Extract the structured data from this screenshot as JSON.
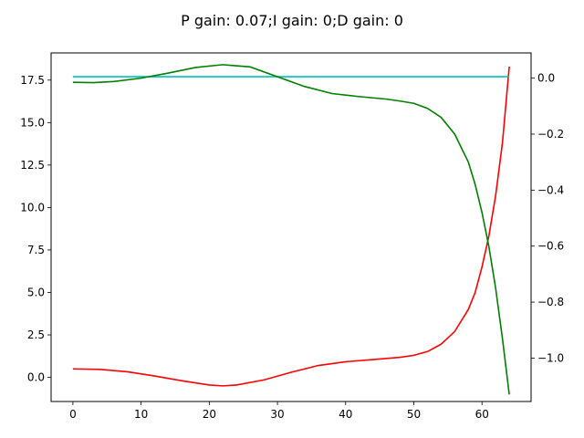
{
  "chart_data": {
    "type": "line",
    "title": "P gain: 0.07;I gain: 0;D gain: 0",
    "xlabel": "",
    "ylabel": "",
    "ylabel_right": "",
    "grid": false,
    "xlim": [
      -3.2,
      67.2
    ],
    "ylim_left": [
      -1.42,
      19.1
    ],
    "ylim_right": [
      -1.155,
      0.09
    ],
    "x_ticks": [
      0,
      10,
      20,
      30,
      40,
      50,
      60
    ],
    "y_ticks_left": [
      0.0,
      2.5,
      5.0,
      7.5,
      10.0,
      12.5,
      15.0,
      17.5
    ],
    "y_ticks_right": [
      0.0,
      -0.2,
      -0.4,
      -0.6,
      -0.8,
      -1.0
    ],
    "series": [
      {
        "axis": "left",
        "color": "#ff0000",
        "x": [
          0,
          4,
          8,
          12,
          16,
          20,
          22,
          24,
          28,
          32,
          36,
          40,
          44,
          48,
          50,
          52,
          54,
          56,
          58,
          59,
          60,
          61,
          62,
          63,
          64
        ],
        "y": [
          0.5,
          0.47,
          0.33,
          0.08,
          -0.2,
          -0.45,
          -0.5,
          -0.45,
          -0.15,
          0.3,
          0.7,
          0.92,
          1.05,
          1.18,
          1.3,
          1.52,
          1.95,
          2.7,
          4.0,
          5.0,
          6.5,
          8.3,
          10.7,
          13.8,
          18.3
        ]
      },
      {
        "axis": "left",
        "color": "#00bfbf",
        "x": [
          0,
          64
        ],
        "y": [
          17.7,
          17.7
        ]
      },
      {
        "axis": "right",
        "color": "#008000",
        "x": [
          0,
          3,
          6,
          10,
          14,
          18,
          22,
          26,
          30,
          34,
          38,
          42,
          46,
          48,
          50,
          52,
          54,
          56,
          58,
          59,
          60,
          61,
          62,
          63,
          64
        ],
        "y": [
          -0.015,
          -0.016,
          -0.012,
          0.0,
          0.018,
          0.038,
          0.048,
          0.04,
          0.005,
          -0.03,
          -0.055,
          -0.066,
          -0.075,
          -0.082,
          -0.09,
          -0.108,
          -0.14,
          -0.2,
          -0.3,
          -0.38,
          -0.48,
          -0.6,
          -0.75,
          -0.93,
          -1.13
        ]
      }
    ]
  }
}
